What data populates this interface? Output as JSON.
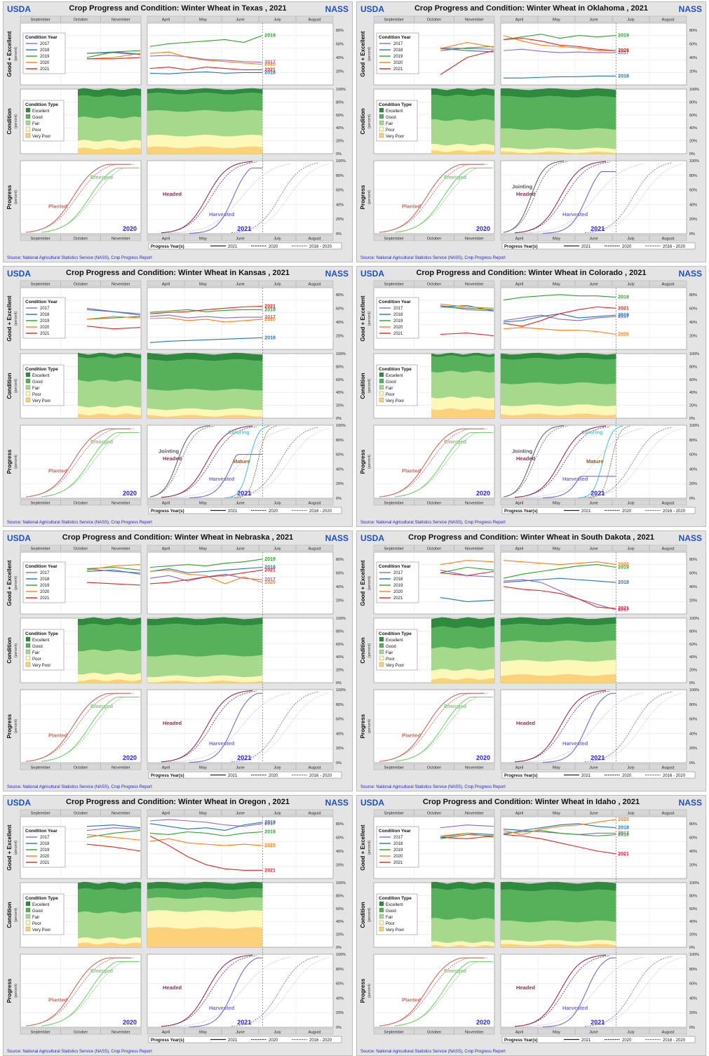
{
  "common": {
    "header_left": "USDA",
    "header_right": "NASS",
    "title_prefix": "Crop Progress and Condition: Winter Wheat in",
    "title_year": "2021",
    "source_text": "Source: National Agricultural Statistics Service (NASS), Crop Progress Report",
    "row_labels": {
      "gex": "Good + Excellent",
      "condition": "Condition",
      "progress": "Progress",
      "percent": "(percent)"
    },
    "fall_months": [
      "September",
      "October",
      "November"
    ],
    "spring_months": [
      "April",
      "May",
      "June",
      "July",
      "August"
    ],
    "percent_ticks_top": [
      "20%",
      "40%",
      "60%",
      "80%"
    ],
    "percent_ticks": [
      "0%",
      "20%",
      "40%",
      "60%",
      "80%",
      "100%"
    ],
    "condition_legend": {
      "title": "Condition Type",
      "items": [
        "Excellent",
        "Good",
        "Fair",
        "Poor",
        "Very Poor"
      ],
      "colors": [
        "#2e8b3e",
        "#57b05a",
        "#a7d98d",
        "#fdf7b8",
        "#fdd07a"
      ]
    },
    "year_legend": {
      "title": "Condition Year",
      "items": [
        "2017",
        "2018",
        "2019",
        "2020",
        "2021"
      ],
      "colors": [
        "#9467bd",
        "#1f77b4",
        "#2ca02c",
        "#ff7f0e",
        "#d62728"
      ]
    },
    "jul4_marker": "Jul. 4",
    "progress_legend": {
      "title": "Progress Year(s)",
      "items": [
        "2021",
        "2020",
        "2016 - 2020"
      ]
    },
    "fall_year_label": "2020",
    "spring_year_label": "2021"
  },
  "chart_data": [
    {
      "type": "line",
      "state": "Texas",
      "gex_series": [
        {
          "name": "2017",
          "fall": [
            46,
            47,
            44
          ],
          "spring": [
            42,
            43,
            41,
            37,
            36,
            34,
            33
          ]
        },
        {
          "name": "2018",
          "fall": [
            46,
            48,
            45
          ],
          "spring": [
            17,
            16,
            18,
            19,
            17,
            18,
            18
          ]
        },
        {
          "name": "2019",
          "fall": [
            40,
            48,
            50
          ],
          "spring": [
            56,
            60,
            62,
            64,
            66,
            62,
            72
          ]
        },
        {
          "name": "2020",
          "fall": [
            38,
            40,
            46
          ],
          "spring": [
            46,
            48,
            40,
            36,
            34,
            32,
            30
          ]
        },
        {
          "name": "2021",
          "fall": [
            38,
            38,
            40
          ],
          "spring": [
            24,
            26,
            22,
            26,
            24,
            22,
            22
          ]
        }
      ],
      "condition_stack": {
        "fall_vp": 8,
        "fall_p": 12,
        "fall_f": 36,
        "fall_g": 33,
        "spring_vp": 10,
        "spring_p": 18,
        "spring_f": 38,
        "spring_g": 27
      },
      "progress_labels": {
        "fall": [
          "Planted",
          "Emerged"
        ],
        "spring": [
          "Headed",
          "Harvested"
        ]
      },
      "progress_ends": {
        "planted": 95,
        "emerged": 90,
        "headed": 100,
        "harvested": 90
      }
    },
    {
      "type": "line",
      "state": "Oklahoma",
      "gex_series": [
        {
          "name": "2017",
          "fall": [
            54,
            53,
            52
          ],
          "spring": [
            50,
            52,
            49,
            47,
            48,
            47,
            47
          ]
        },
        {
          "name": "2018",
          "fall": [
            53,
            50,
            48
          ],
          "spring": [
            10,
            10,
            11,
            12,
            12,
            13,
            13
          ]
        },
        {
          "name": "2019",
          "fall": [
            50,
            54,
            56
          ],
          "spring": [
            66,
            70,
            74,
            68,
            72,
            70,
            72
          ]
        },
        {
          "name": "2020",
          "fall": [
            53,
            62,
            55
          ],
          "spring": [
            72,
            64,
            58,
            56,
            54,
            50,
            50
          ]
        },
        {
          "name": "2021",
          "fall": [
            15,
            40,
            50
          ],
          "spring": [
            66,
            68,
            64,
            58,
            56,
            52,
            50
          ]
        }
      ],
      "condition_stack": {
        "fall_vp": 4,
        "fall_p": 10,
        "fall_f": 38,
        "fall_g": 38,
        "spring_vp": 2,
        "spring_p": 6,
        "spring_f": 30,
        "spring_g": 50
      },
      "progress_labels": {
        "fall": [
          "Planted",
          "Emerged"
        ],
        "spring": [
          "Jointing",
          "Headed",
          "Harvested"
        ]
      },
      "progress_ends": {
        "planted": 95,
        "emerged": 90,
        "headed": 100,
        "harvested": 85
      }
    },
    {
      "type": "line",
      "state": "Kansas",
      "gex_series": [
        {
          "name": "2017",
          "fall": [
            60,
            55,
            52
          ],
          "spring": [
            48,
            50,
            46,
            48,
            46,
            47,
            47
          ]
        },
        {
          "name": "2018",
          "fall": [
            58,
            55,
            50
          ],
          "spring": [
            10,
            12,
            13,
            14,
            15,
            16,
            17
          ]
        },
        {
          "name": "2019",
          "fall": [
            44,
            46,
            48
          ],
          "spring": [
            54,
            56,
            58,
            55,
            57,
            58,
            58
          ]
        },
        {
          "name": "2020",
          "fall": [
            44,
            48,
            46
          ],
          "spring": [
            45,
            46,
            42,
            44,
            40,
            42,
            44
          ]
        },
        {
          "name": "2021",
          "fall": [
            34,
            30,
            32
          ],
          "spring": [
            52,
            54,
            55,
            58,
            60,
            62,
            63
          ]
        }
      ],
      "condition_stack": {
        "fall_vp": 6,
        "fall_p": 12,
        "fall_f": 40,
        "fall_g": 36,
        "spring_vp": 4,
        "spring_p": 10,
        "spring_f": 30,
        "spring_g": 46
      },
      "progress_labels": {
        "fall": [
          "Planted",
          "Emerged"
        ],
        "spring": [
          "Jointing",
          "Headed",
          "Coloring",
          "Mature",
          "Harvested"
        ]
      },
      "progress_ends": {
        "planted": 95,
        "emerged": 90,
        "headed": 100,
        "harvested": 60
      }
    },
    {
      "type": "line",
      "state": "Colorado",
      "gex_series": [
        {
          "name": "2017",
          "fall": [
            64,
            58,
            56
          ],
          "spring": [
            42,
            46,
            50,
            44,
            42,
            46,
            48
          ]
        },
        {
          "name": "2018",
          "fall": [
            62,
            64,
            56
          ],
          "spring": [
            40,
            42,
            48,
            52,
            46,
            48,
            50
          ]
        },
        {
          "name": "2019",
          "fall": [
            62,
            60,
            58
          ],
          "spring": [
            72,
            76,
            78,
            80,
            78,
            78,
            76
          ]
        },
        {
          "name": "2020",
          "fall": [
            66,
            62,
            60
          ],
          "spring": [
            30,
            32,
            30,
            28,
            28,
            26,
            22
          ]
        },
        {
          "name": "2021",
          "fall": [
            22,
            24,
            20
          ],
          "spring": [
            38,
            34,
            42,
            52,
            58,
            62,
            60
          ]
        }
      ],
      "condition_stack": {
        "fall_vp": 14,
        "fall_p": 18,
        "fall_f": 40,
        "fall_g": 24,
        "spring_vp": 6,
        "spring_p": 14,
        "spring_f": 34,
        "spring_g": 38
      },
      "progress_labels": {
        "fall": [
          "Planted",
          "Emerged"
        ],
        "spring": [
          "Jointing",
          "Headed",
          "Coloring",
          "Mature",
          "Harvested"
        ]
      },
      "progress_ends": {
        "planted": 95,
        "emerged": 90,
        "headed": 100,
        "harvested": 30
      }
    },
    {
      "type": "line",
      "state": "Nebraska",
      "gex_series": [
        {
          "name": "2017",
          "fall": [
            66,
            62,
            60
          ],
          "spring": [
            52,
            56,
            48,
            54,
            58,
            52,
            50
          ]
        },
        {
          "name": "2018",
          "fall": [
            62,
            64,
            58
          ],
          "spring": [
            62,
            66,
            60,
            62,
            64,
            66,
            68
          ]
        },
        {
          "name": "2019",
          "fall": [
            66,
            68,
            64
          ],
          "spring": [
            68,
            70,
            72,
            70,
            74,
            76,
            80
          ]
        },
        {
          "name": "2020",
          "fall": [
            64,
            70,
            72
          ],
          "spring": [
            62,
            64,
            58,
            56,
            44,
            54,
            46
          ]
        },
        {
          "name": "2021",
          "fall": [
            46,
            44,
            42
          ],
          "spring": [
            44,
            46,
            50,
            54,
            56,
            60,
            64
          ]
        }
      ],
      "condition_stack": {
        "fall_vp": 4,
        "fall_p": 10,
        "fall_f": 36,
        "fall_g": 40,
        "spring_vp": 2,
        "spring_p": 8,
        "spring_f": 32,
        "spring_g": 48
      },
      "progress_labels": {
        "fall": [
          "Planted",
          "Emerged"
        ],
        "spring": [
          "Headed",
          "Harvested"
        ]
      },
      "progress_ends": {
        "planted": 95,
        "emerged": 90,
        "headed": 100,
        "harvested": 95
      }
    },
    {
      "type": "line",
      "state": "South Dakota",
      "gex_series": [
        {
          "name": "2017",
          "fall": [
            64,
            56,
            54
          ],
          "spring": [
            48,
            50,
            46,
            34,
            22,
            14,
            6
          ]
        },
        {
          "name": "2018",
          "fall": [
            24,
            18,
            20
          ],
          "spring": [
            46,
            48,
            50,
            52,
            50,
            48,
            46
          ]
        },
        {
          "name": "2019",
          "fall": [
            60,
            68,
            64
          ],
          "spring": [
            52,
            58,
            62,
            66,
            70,
            72,
            68
          ]
        },
        {
          "name": "2020",
          "fall": [
            72,
            78,
            76
          ],
          "spring": [
            78,
            76,
            74,
            72,
            74,
            76,
            72
          ]
        },
        {
          "name": "2021",
          "fall": [
            60,
            56,
            62
          ],
          "spring": [
            40,
            36,
            34,
            30,
            22,
            10,
            8
          ]
        }
      ],
      "condition_stack": {
        "fall_vp": 6,
        "fall_p": 14,
        "fall_f": 34,
        "fall_g": 32,
        "spring_vp": 12,
        "spring_p": 22,
        "spring_f": 30,
        "spring_g": 26
      },
      "progress_labels": {
        "fall": [
          "Planted",
          "Emerged"
        ],
        "spring": [
          "Headed",
          "Harvested"
        ]
      },
      "progress_ends": {
        "planted": 95,
        "emerged": 90,
        "headed": 100,
        "harvested": 95
      }
    },
    {
      "type": "line",
      "state": "Oregon",
      "gex_series": [
        {
          "name": "2017",
          "fall": [
            70,
            74,
            72
          ],
          "spring": [
            84,
            86,
            84,
            82,
            78,
            76,
            80
          ]
        },
        {
          "name": "2018",
          "fall": [
            76,
            78,
            74
          ],
          "spring": [
            80,
            76,
            72,
            74,
            70,
            78,
            82
          ]
        },
        {
          "name": "2019",
          "fall": [
            60,
            66,
            70
          ],
          "spring": [
            66,
            64,
            68,
            66,
            62,
            66,
            68
          ]
        },
        {
          "name": "2020",
          "fall": [
            64,
            60,
            56
          ],
          "spring": [
            54,
            58,
            52,
            50,
            48,
            50,
            48
          ]
        },
        {
          "name": "2021",
          "fall": [
            50,
            46,
            40
          ],
          "spring": [
            62,
            48,
            32,
            20,
            14,
            12,
            12
          ]
        }
      ],
      "condition_stack": {
        "fall_vp": 6,
        "fall_p": 8,
        "fall_f": 40,
        "fall_g": 36,
        "spring_vp": 30,
        "spring_p": 26,
        "spring_f": 20,
        "spring_g": 14
      },
      "progress_labels": {
        "fall": [
          "Planted",
          "Emerged"
        ],
        "spring": [
          "Headed",
          "Harvested"
        ]
      },
      "progress_ends": {
        "planted": 95,
        "emerged": 90,
        "headed": 100,
        "harvested": 95
      }
    },
    {
      "type": "line",
      "state": "Idaho",
      "gex_series": [
        {
          "name": "2017",
          "fall": [
            74,
            78,
            76
          ],
          "spring": [
            64,
            70,
            68,
            66,
            64,
            66,
            66
          ]
        },
        {
          "name": "2018",
          "fall": [
            60,
            66,
            64
          ],
          "spring": [
            72,
            70,
            74,
            78,
            80,
            76,
            74
          ]
        },
        {
          "name": "2019",
          "fall": [
            58,
            64,
            62
          ],
          "spring": [
            66,
            68,
            70,
            66,
            64,
            62,
            64
          ]
        },
        {
          "name": "2020",
          "fall": [
            62,
            66,
            60
          ],
          "spring": [
            70,
            64,
            72,
            76,
            78,
            82,
            86
          ]
        },
        {
          "name": "2021",
          "fall": [
            60,
            58,
            62
          ],
          "spring": [
            64,
            62,
            58,
            52,
            46,
            40,
            36
          ]
        }
      ],
      "condition_stack": {
        "fall_vp": 2,
        "fall_p": 6,
        "fall_f": 36,
        "fall_g": 46,
        "spring_vp": 4,
        "spring_p": 6,
        "spring_f": 30,
        "spring_g": 48
      },
      "progress_labels": {
        "fall": [
          "Planted",
          "Emerged"
        ],
        "spring": [
          "Headed",
          "Harvested"
        ]
      },
      "progress_ends": {
        "planted": 95,
        "emerged": 90,
        "headed": 100,
        "harvested": 95
      }
    }
  ]
}
